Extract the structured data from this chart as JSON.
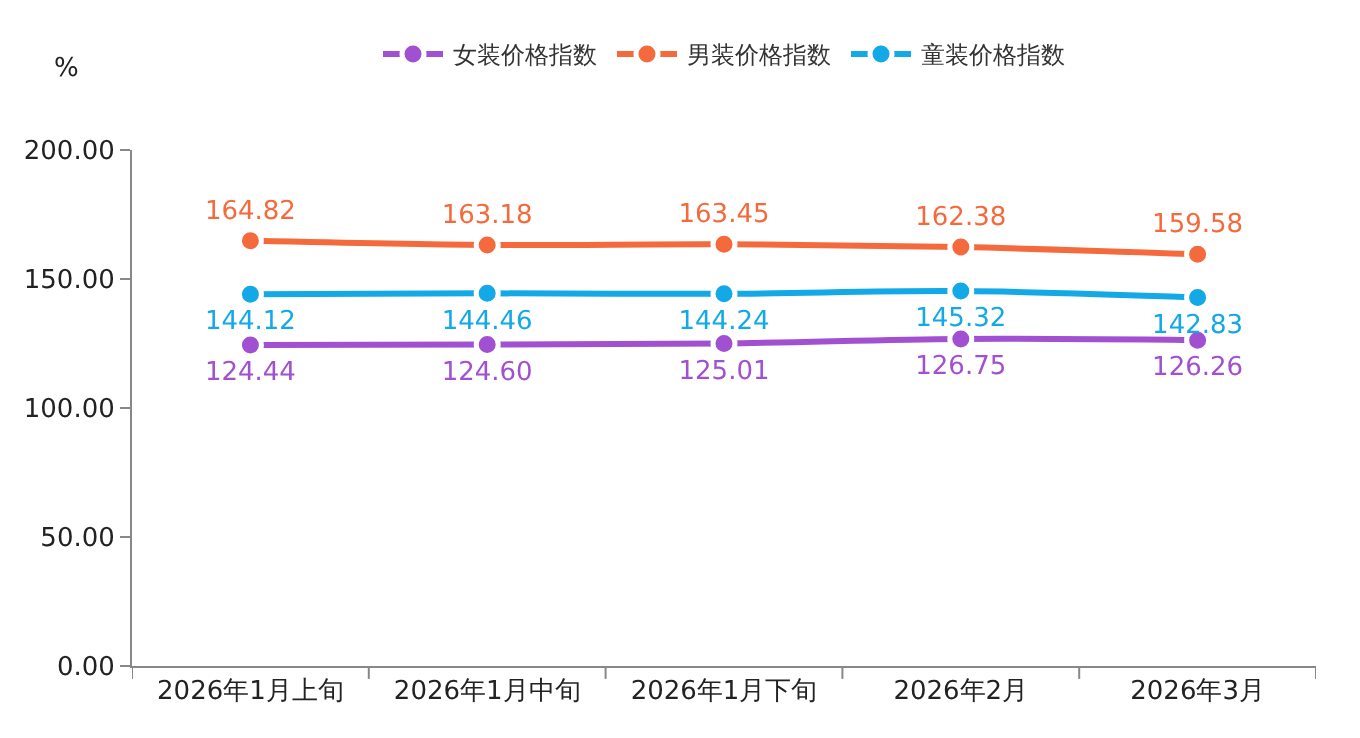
{
  "chart_data": {
    "type": "line",
    "ylabel": "%",
    "categories": [
      "2026年1月上旬",
      "2026年1月中旬",
      "2026年1月下旬",
      "2026年2月",
      "2026年3月"
    ],
    "series": [
      {
        "name": "女装价格指数",
        "color": "#a050d0",
        "values": [
          124.44,
          124.6,
          125.01,
          126.75,
          126.26
        ],
        "value_labels": [
          "124.44",
          "124.60",
          "125.01",
          "126.75",
          "126.26"
        ]
      },
      {
        "name": "男装价格指数",
        "color": "#f46a3c",
        "values": [
          164.82,
          163.18,
          163.45,
          162.38,
          159.58
        ],
        "value_labels": [
          "164.82",
          "163.18",
          "163.45",
          "162.38",
          "159.58"
        ]
      },
      {
        "name": "童装价格指数",
        "color": "#12a9e6",
        "values": [
          144.12,
          144.46,
          144.24,
          145.32,
          142.83
        ],
        "value_labels": [
          "144.12",
          "144.46",
          "144.24",
          "145.32",
          "142.83"
        ]
      }
    ],
    "ylim": [
      0,
      200
    ],
    "yticks": [
      {
        "value": 0,
        "label": "0.00"
      },
      {
        "value": 50,
        "label": "50.00"
      },
      {
        "value": 100,
        "label": "100.00"
      },
      {
        "value": 150,
        "label": "150.00"
      },
      {
        "value": 200,
        "label": "200.00"
      }
    ],
    "legend": "top",
    "marker": "circle",
    "line_style": "solid"
  }
}
